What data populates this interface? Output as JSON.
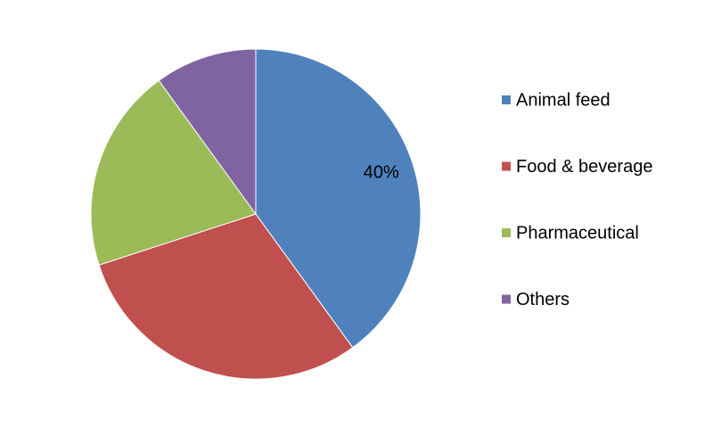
{
  "chart_data": {
    "type": "pie",
    "categories": [
      "Animal feed",
      "Food & beverage",
      "Pharmaceutical",
      "Others"
    ],
    "values": [
      40,
      30,
      20,
      10
    ],
    "value_labels": [
      "40%",
      null,
      null,
      null
    ],
    "colors": [
      "#4f81bd",
      "#c0504d",
      "#9bbb59",
      "#8064a2"
    ],
    "legend": "right"
  }
}
